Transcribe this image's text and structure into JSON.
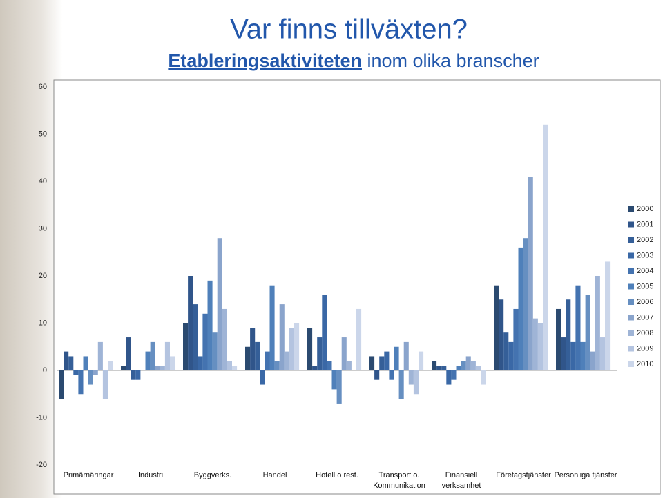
{
  "chart_data": {
    "type": "bar",
    "title": "Var finns tillväxten?",
    "subtitle_emphasis": "Etableringsaktiviteten",
    "subtitle": "inom olika branscher",
    "categories": [
      "Primärnäringar",
      "Industri",
      "Byggverks.",
      "Handel",
      "Hotell o rest.",
      "Transport o. Kommunikation",
      "Finansiell verksamhet",
      "Företagstjänster",
      "Personliga tjänster"
    ],
    "series": [
      {
        "name": "2000",
        "color": "#2b4a70",
        "values": [
          -6,
          1,
          10,
          5,
          9,
          3,
          2,
          18,
          13
        ]
      },
      {
        "name": "2001",
        "color": "#30558a",
        "values": [
          4,
          7,
          20,
          9,
          1,
          -2,
          1,
          15,
          7
        ]
      },
      {
        "name": "2002",
        "color": "#355f98",
        "values": [
          3,
          -2,
          14,
          6,
          7,
          3,
          1,
          8,
          15
        ]
      },
      {
        "name": "2003",
        "color": "#3a68a6",
        "values": [
          -1,
          -2,
          3,
          -3,
          16,
          4,
          -3,
          6,
          6
        ]
      },
      {
        "name": "2004",
        "color": "#4473b0",
        "values": [
          -5,
          0,
          12,
          4,
          2,
          -2,
          -2,
          13,
          18
        ]
      },
      {
        "name": "2005",
        "color": "#4f80ba",
        "values": [
          3,
          4,
          19,
          18,
          -4,
          5,
          1,
          26,
          6
        ]
      },
      {
        "name": "2006",
        "color": "#668fc1",
        "values": [
          -3,
          6,
          8,
          2,
          -7,
          -6,
          2,
          28,
          16
        ]
      },
      {
        "name": "2007",
        "color": "#8aa4cc",
        "values": [
          -1,
          1,
          28,
          14,
          7,
          6,
          3,
          41,
          4
        ]
      },
      {
        "name": "2008",
        "color": "#9fb4d6",
        "values": [
          6,
          1,
          13,
          4,
          2,
          -3,
          2,
          11,
          20
        ]
      },
      {
        "name": "2009",
        "color": "#b4c4e0",
        "values": [
          -6,
          6,
          2,
          9,
          0,
          -5,
          1,
          10,
          7
        ]
      },
      {
        "name": "2010",
        "color": "#cbd6ea",
        "values": [
          2,
          3,
          1,
          10,
          13,
          4,
          -3,
          52,
          23
        ]
      }
    ],
    "ylim": [
      -20,
      60
    ],
    "yticks": [
      -20,
      -10,
      0,
      10,
      20,
      30,
      40,
      50,
      60
    ]
  }
}
